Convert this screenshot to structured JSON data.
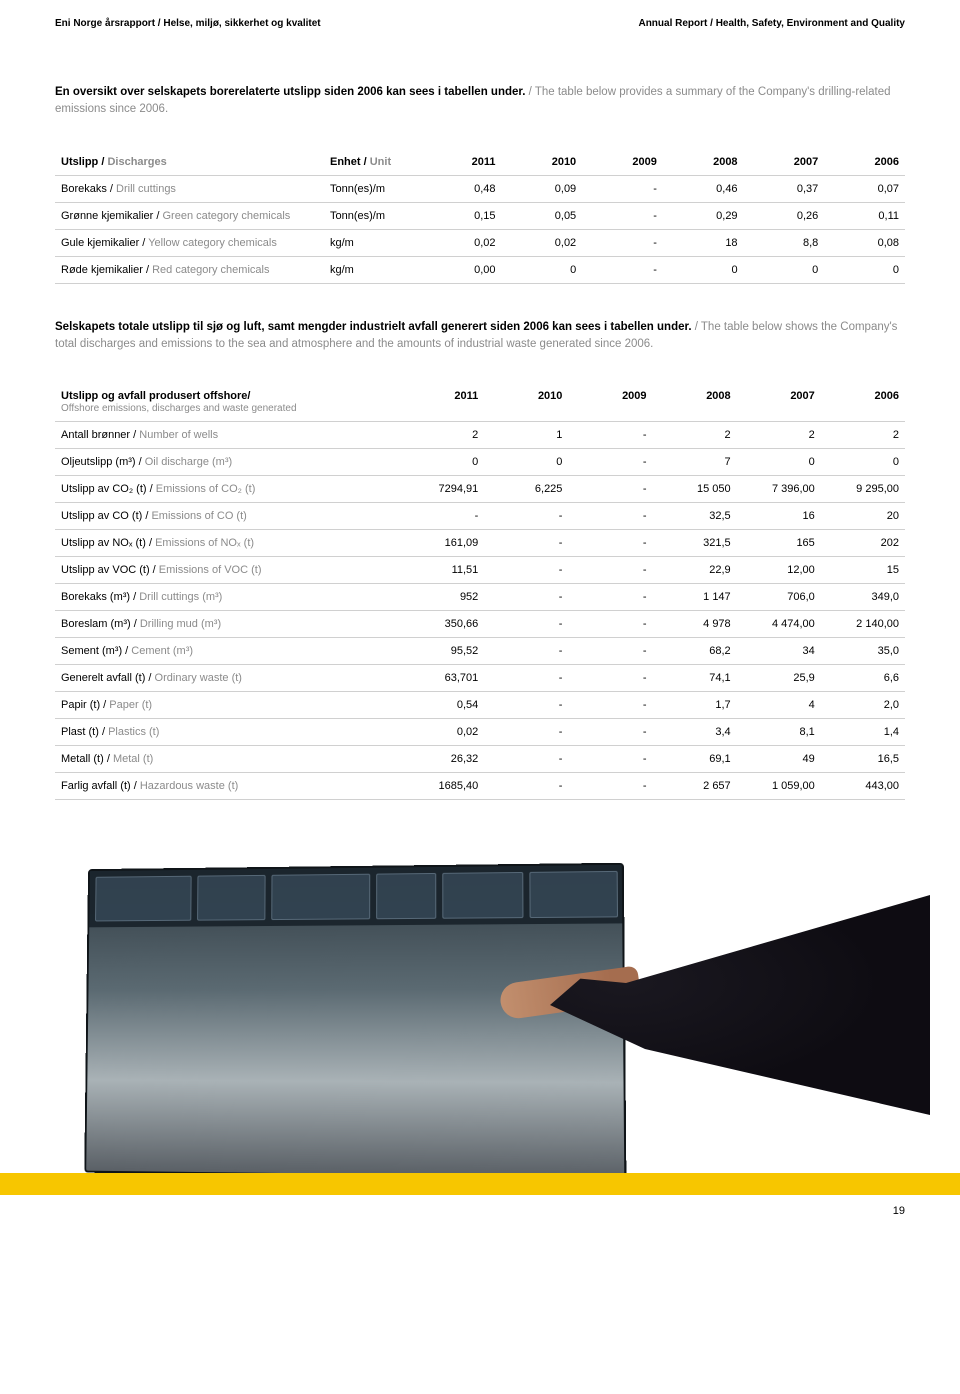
{
  "header": {
    "left": "Eni Norge årsrapport / Helse, miljø, sikkerhet og kvalitet",
    "right": "Annual Report / Health, Safety, Environment and Quality"
  },
  "intro1": {
    "bold": "En oversikt over selskapets borerelaterte utslipp siden 2006 kan sees i tabellen under.",
    "grey": " / The table below provides a summary of the Company's drilling-related emissions since 2006."
  },
  "table1": {
    "head": {
      "c0_bold": "Utslipp / ",
      "c0_grey": "Discharges",
      "c1_bold": "Enhet / ",
      "c1_grey": "Unit",
      "years": [
        "2011",
        "2010",
        "2009",
        "2008",
        "2007",
        "2006"
      ]
    },
    "rows": [
      {
        "l_bold": "Borekaks / ",
        "l_grey": "Drill cuttings",
        "unit": "Tonn(es)/m",
        "v": [
          "0,48",
          "0,09",
          "-",
          "0,46",
          "0,37",
          "0,07"
        ]
      },
      {
        "l_bold": "Grønne kjemikalier / ",
        "l_grey": "Green category chemicals",
        "unit": "Tonn(es)/m",
        "v": [
          "0,15",
          "0,05",
          "-",
          "0,29",
          "0,26",
          "0,11"
        ]
      },
      {
        "l_bold": "Gule kjemikalier / ",
        "l_grey": "Yellow category chemicals",
        "unit": "kg/m",
        "v": [
          "0,02",
          "0,02",
          "-",
          "18",
          "8,8",
          "0,08"
        ]
      },
      {
        "l_bold": "Røde kjemikalier / ",
        "l_grey": "Red category chemicals",
        "unit": "kg/m",
        "v": [
          "0,00",
          "0",
          "-",
          "0",
          "0",
          "0"
        ]
      }
    ]
  },
  "intro2": {
    "bold": "Selskapets totale utslipp til sjø og luft, samt mengder industrielt avfall generert siden 2006 kan sees i tabellen under.",
    "grey": " / The table below shows the Company's total discharges and emissions to the sea and atmosphere and the amounts of industrial waste generated since 2006."
  },
  "table2": {
    "head": {
      "title_bold": "Utslipp og avfall produsert offshore/",
      "title_grey": "Offshore emissions, discharges and waste generated",
      "years": [
        "2011",
        "2010",
        "2009",
        "2008",
        "2007",
        "2006"
      ]
    },
    "rows": [
      {
        "l_bold": "Antall brønner / ",
        "l_grey": "Number of wells",
        "v": [
          "2",
          "1",
          "-",
          "2",
          "2",
          "2"
        ]
      },
      {
        "l_bold": "Oljeutslipp (m³) / ",
        "l_grey": "Oil discharge (m³)",
        "v": [
          "0",
          "0",
          "-",
          "7",
          "0",
          "0"
        ]
      },
      {
        "l_bold": "Utslipp av CO₂ (t) / ",
        "l_grey": "Emissions of CO₂ (t)",
        "v": [
          "7294,91",
          "6,225",
          "-",
          "15 050",
          "7 396,00",
          "9 295,00"
        ]
      },
      {
        "l_bold": "Utslipp av CO (t) / ",
        "l_grey": "Emissions of CO (t)",
        "v": [
          "-",
          "-",
          "-",
          "32,5",
          "16",
          "20"
        ]
      },
      {
        "l_bold": "Utslipp av NOₓ (t) / ",
        "l_grey": "Emissions of NOₓ (t)",
        "v": [
          "161,09",
          "-",
          "-",
          "321,5",
          "165",
          "202"
        ]
      },
      {
        "l_bold": "Utslipp av VOC (t) / ",
        "l_grey": "Emissions of VOC (t)",
        "v": [
          "11,51",
          "-",
          "-",
          "22,9",
          "12,00",
          "15"
        ]
      },
      {
        "l_bold": "Borekaks (m³) / ",
        "l_grey": "Drill cuttings (m³)",
        "v": [
          "952",
          "-",
          "-",
          "1 147",
          "706,0",
          "349,0"
        ]
      },
      {
        "l_bold": "Boreslam (m³) / ",
        "l_grey": "Drilling mud (m³)",
        "v": [
          "350,66",
          "-",
          "-",
          "4 978",
          "4 474,00",
          "2 140,00"
        ]
      },
      {
        "l_bold": "Sement (m³) / ",
        "l_grey": "Cement (m³)",
        "v": [
          "95,52",
          "-",
          "-",
          "68,2",
          "34",
          "35,0"
        ]
      },
      {
        "l_bold": "Generelt avfall (t) / ",
        "l_grey": "Ordinary waste (t)",
        "v": [
          "63,701",
          "-",
          "-",
          "74,1",
          "25,9",
          "6,6"
        ]
      },
      {
        "l_bold": "Papir (t) / ",
        "l_grey": "Paper (t)",
        "v": [
          "0,54",
          "-",
          "-",
          "1,7",
          "4",
          "2,0"
        ]
      },
      {
        "l_bold": "Plast (t) / ",
        "l_grey": "Plastics (t)",
        "v": [
          "0,02",
          "-",
          "-",
          "3,4",
          "8,1",
          "1,4"
        ]
      },
      {
        "l_bold": "Metall (t) / ",
        "l_grey": "Metal (t)",
        "v": [
          "26,32",
          "-",
          "-",
          "69,1",
          "49",
          "16,5"
        ]
      },
      {
        "l_bold": "Farlig avfall (t) / ",
        "l_grey": "Hazardous waste (t)",
        "v": [
          "1685,40",
          "-",
          "-",
          "2 657",
          "1 059,00",
          "443,00"
        ]
      }
    ]
  },
  "pageNumber": "19"
}
